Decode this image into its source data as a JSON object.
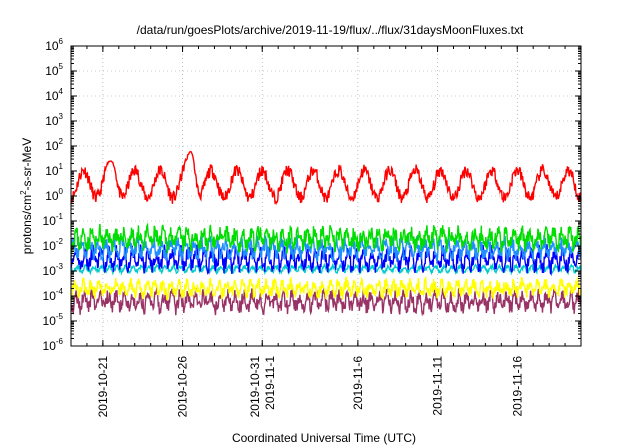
{
  "chart_data": {
    "type": "line",
    "title": "/data/run/goesPlots/archive/2019-11-19/flux/../flux/31daysMoonFluxes.txt",
    "xlabel": "Coordinated Universal Time (UTC)",
    "ylabel": "protons/cm2-s-sr-MeV",
    "yscale": "log",
    "ylim": [
      1e-06,
      1000000.0
    ],
    "xlim": [
      "2019-10-19T00:00",
      "2019-11-20T00:00"
    ],
    "grid": true,
    "y_ticks": [
      {
        "base": "10",
        "exp": "-6"
      },
      {
        "base": "10",
        "exp": "-5"
      },
      {
        "base": "10",
        "exp": "-4"
      },
      {
        "base": "10",
        "exp": "-3"
      },
      {
        "base": "10",
        "exp": "-2"
      },
      {
        "base": "10",
        "exp": "-1"
      },
      {
        "base": "10",
        "exp": "0"
      },
      {
        "base": "10",
        "exp": "1"
      },
      {
        "base": "10",
        "exp": "2"
      },
      {
        "base": "10",
        "exp": "3"
      },
      {
        "base": "10",
        "exp": "4"
      },
      {
        "base": "10",
        "exp": "5"
      },
      {
        "base": "10",
        "exp": "6"
      }
    ],
    "x_ticks": [
      {
        "date": "2019-10-21",
        "lines": [
          "2019-10-21"
        ]
      },
      {
        "date": "2019-10-26",
        "lines": [
          "2019-10-26"
        ]
      },
      {
        "date": "2019-10-31",
        "lines": [
          "2019-10-31",
          "2019-11-1"
        ]
      },
      {
        "date": "2019-11-06",
        "lines": [
          "2019-11-6"
        ]
      },
      {
        "date": "2019-11-11",
        "lines": [
          "2019-11-11"
        ]
      },
      {
        "date": "2019-11-16",
        "lines": [
          "2019-11-16"
        ]
      }
    ],
    "series": [
      {
        "color": "#ff0000",
        "level": 3.0,
        "amplitude": 0.55,
        "period_days": 1.6,
        "noise": 0.25,
        "seed": 11,
        "peaks": [
          {
            "date": "2019-10-26",
            "value": 60
          },
          {
            "date": "2019-10-21",
            "value": 25
          }
        ]
      },
      {
        "color": "#00dd00",
        "level": 0.02,
        "amplitude": 0.25,
        "period_days": 0.5,
        "noise": 0.35,
        "seed": 23,
        "peaks": []
      },
      {
        "color": "#1e90ff",
        "level": 0.008,
        "amplitude": 0.25,
        "period_days": 0.5,
        "noise": 0.3,
        "seed": 37,
        "peaks": []
      },
      {
        "color": "#0000ff",
        "level": 0.003,
        "amplitude": 0.3,
        "period_days": 0.5,
        "noise": 0.3,
        "seed": 41,
        "peaks": []
      },
      {
        "color": "#00cccc",
        "level": 0.0012,
        "amplitude": 0.1,
        "period_days": 0.5,
        "noise": 0.08,
        "seed": 53,
        "peaks": []
      },
      {
        "color": "#ffff00",
        "level": 0.0002,
        "amplitude": 0.2,
        "period_days": 0.5,
        "noise": 0.25,
        "seed": 61,
        "peaks": []
      },
      {
        "color": "#993366",
        "level": 6e-05,
        "amplitude": 0.25,
        "period_days": 0.5,
        "noise": 0.3,
        "seed": 79,
        "peaks": []
      }
    ]
  }
}
